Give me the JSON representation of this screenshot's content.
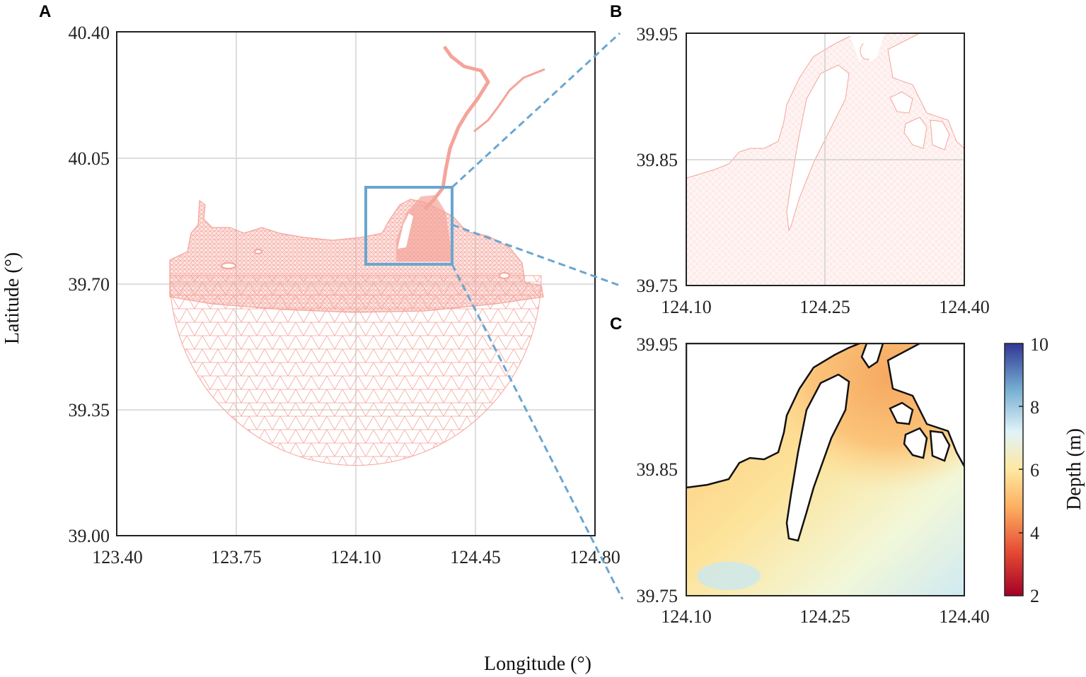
{
  "panels": {
    "a": {
      "label": "A",
      "x_ticks": [
        "123.40",
        "123.75",
        "124.10",
        "124.45",
        "124.80"
      ],
      "y_ticks": [
        "40.40",
        "40.05",
        "39.70",
        "39.35",
        "39.00"
      ]
    },
    "b": {
      "label": "B",
      "x_ticks": [
        "124.10",
        "124.25",
        "124.40"
      ],
      "y_ticks": [
        "39.95",
        "39.85",
        "39.75"
      ]
    },
    "c": {
      "label": "C",
      "x_ticks": [
        "124.10",
        "124.25",
        "124.40"
      ],
      "y_ticks": [
        "39.95",
        "39.85",
        "39.75"
      ]
    }
  },
  "axis_labels": {
    "x": "Longitude (°)",
    "y": "Latitude (°)"
  },
  "colorbar": {
    "label": "Depth (m)",
    "ticks": [
      "10",
      "8",
      "6",
      "4",
      "2"
    ],
    "range": [
      2,
      10
    ],
    "colors": [
      "#a50026",
      "#e34a33",
      "#fdae61",
      "#fee8a0",
      "#e0f3f8",
      "#74add1",
      "#313695"
    ]
  },
  "colors": {
    "mesh": "#f4a49a",
    "zoom_box": "#6aa6d0",
    "grid": "#d4d4d4"
  }
}
